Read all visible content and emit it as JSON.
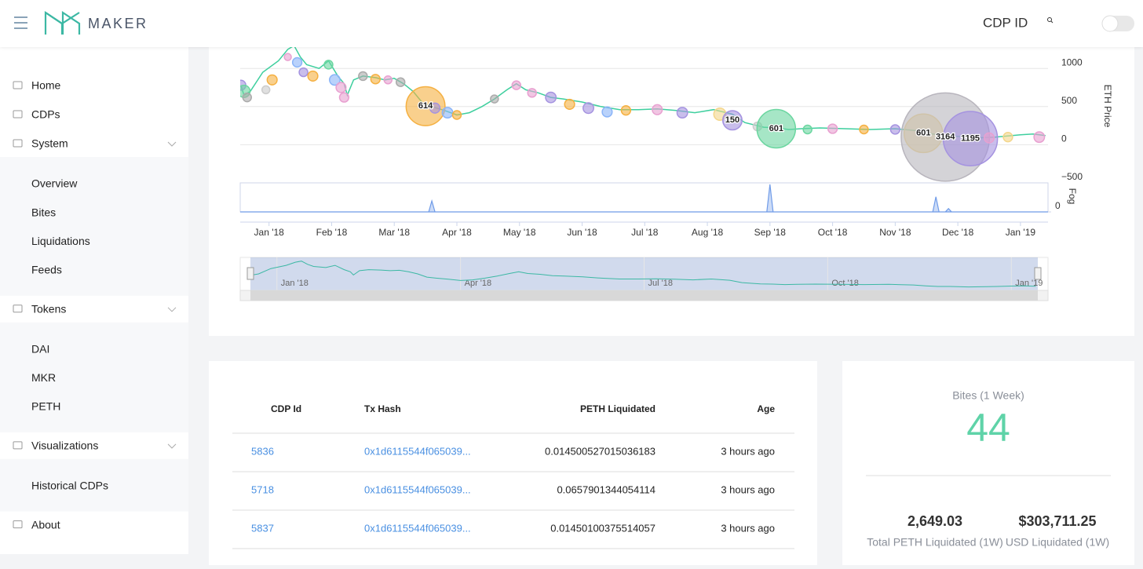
{
  "header": {
    "brand": "MAKER",
    "search_label": "CDP ID"
  },
  "sidebar": [
    {
      "label": "Home"
    },
    {
      "label": "CDPs"
    },
    {
      "label": "System",
      "children": [
        "Overview",
        "Bites",
        "Liquidations",
        "Feeds"
      ]
    },
    {
      "label": "Tokens",
      "children": [
        "DAI",
        "MKR",
        "PETH"
      ]
    },
    {
      "label": "Visualizations",
      "children": [
        "Historical CDPs"
      ]
    },
    {
      "label": "About"
    }
  ],
  "chart_data": {
    "type": "line",
    "y_label": "ETH Price",
    "y2_label": "Fog",
    "xlim": [
      -0.46,
      12.44
    ],
    "xticks": [
      {
        "value": 0,
        "label": "Jan '18"
      },
      {
        "value": 1,
        "label": "Feb '18"
      },
      {
        "value": 2,
        "label": "Mar '18"
      },
      {
        "value": 3,
        "label": "Apr '18"
      },
      {
        "value": 4,
        "label": "May '18"
      },
      {
        "value": 5,
        "label": "Jun '18"
      },
      {
        "value": 6,
        "label": "Jul '18"
      },
      {
        "value": 7,
        "label": "Aug '18"
      },
      {
        "value": 8,
        "label": "Sep '18"
      },
      {
        "value": 9,
        "label": "Oct '18"
      },
      {
        "value": 10,
        "label": "Nov '18"
      },
      {
        "value": 11,
        "label": "Dec '18"
      },
      {
        "value": 12,
        "label": "Jan '19"
      }
    ],
    "ylim": [
      -500,
      1280
    ],
    "yticks": [
      {
        "value": -500,
        "label": "−500"
      },
      0,
      500,
      1000
    ],
    "grid": true,
    "x": [
      -0.45,
      -0.4,
      -0.3,
      -0.1,
      0.15,
      0.3,
      0.4,
      0.5,
      0.6,
      0.8,
      0.95,
      1.1,
      1.2,
      1.25,
      1.35,
      1.5,
      1.7,
      1.85,
      2.0,
      2.15,
      2.3,
      2.45,
      2.6,
      2.8,
      3.0,
      3.2,
      3.4,
      3.6,
      3.8,
      3.95,
      4.1,
      4.3,
      4.5,
      4.7,
      5.0,
      5.3,
      5.6,
      5.9,
      6.2,
      6.5,
      6.8,
      7.1,
      7.4,
      7.6,
      7.9,
      8.1,
      8.3,
      8.5,
      8.8,
      9.2,
      9.6,
      10.0,
      10.4,
      10.6,
      10.8,
      11.0,
      11.3,
      11.6,
      12.0,
      12.2,
      12.4
    ],
    "series": [
      {
        "name": "ETH Price",
        "color": "#3ecf9e",
        "values": [
          780,
          650,
          700,
          950,
          1100,
          1250,
          1300,
          1150,
          1050,
          1000,
          1100,
          900,
          800,
          650,
          850,
          900,
          880,
          850,
          870,
          800,
          700,
          550,
          500,
          450,
          390,
          420,
          500,
          600,
          720,
          800,
          720,
          680,
          620,
          600,
          560,
          500,
          460,
          460,
          470,
          450,
          420,
          460,
          400,
          290,
          230,
          220,
          200,
          210,
          220,
          210,
          200,
          210,
          180,
          140,
          110,
          110,
          90,
          100,
          130,
          140,
          120
        ]
      }
    ],
    "bubbles": [
      {
        "x": -0.45,
        "y": 780,
        "size": 40,
        "color": "#a593e0"
      },
      {
        "x": -0.4,
        "y": 700,
        "size": 60,
        "color": "#6bd6a0"
      },
      {
        "x": -0.35,
        "y": 620,
        "size": 30,
        "color": "#aaaaaa"
      },
      {
        "x": -0.05,
        "y": 720,
        "size": 25,
        "color": "#cccccc"
      },
      {
        "x": 0.05,
        "y": 850,
        "size": 40,
        "color": "#f5b041"
      },
      {
        "x": 0.3,
        "y": 1150,
        "size": 20,
        "color": "#e8a0d0"
      },
      {
        "x": 0.45,
        "y": 1080,
        "size": 35,
        "color": "#8ab4f8"
      },
      {
        "x": 0.55,
        "y": 950,
        "size": 30,
        "color": "#a593e0"
      },
      {
        "x": 0.7,
        "y": 900,
        "size": 40,
        "color": "#f5b041"
      },
      {
        "x": 0.95,
        "y": 1050,
        "size": 30,
        "color": "#6bd6a0"
      },
      {
        "x": 1.05,
        "y": 850,
        "size": 45,
        "color": "#8ab4f8"
      },
      {
        "x": 1.15,
        "y": 750,
        "size": 40,
        "color": "#e8a0d0"
      },
      {
        "x": 1.2,
        "y": 620,
        "size": 35,
        "color": "#e8a0d0"
      },
      {
        "x": 1.5,
        "y": 900,
        "size": 30,
        "color": "#aaaaaa"
      },
      {
        "x": 1.7,
        "y": 860,
        "size": 35,
        "color": "#f5b041"
      },
      {
        "x": 1.9,
        "y": 850,
        "size": 25,
        "color": "#e8a0d0"
      },
      {
        "x": 2.1,
        "y": 820,
        "size": 30,
        "color": "#aaaaaa"
      },
      {
        "x": 2.5,
        "y": 505,
        "size": 614,
        "color": "#f5b041"
      },
      {
        "x": 2.65,
        "y": 480,
        "size": 40,
        "color": "#a593e0"
      },
      {
        "x": 2.85,
        "y": 420,
        "size": 45,
        "color": "#8ab4f8"
      },
      {
        "x": 3.0,
        "y": 390,
        "size": 30,
        "color": "#f5b041"
      },
      {
        "x": 3.6,
        "y": 600,
        "size": 25,
        "color": "#aaaaaa"
      },
      {
        "x": 3.95,
        "y": 780,
        "size": 30,
        "color": "#e8a0d0"
      },
      {
        "x": 4.2,
        "y": 680,
        "size": 30,
        "color": "#e8a0d0"
      },
      {
        "x": 4.5,
        "y": 620,
        "size": 45,
        "color": "#a593e0"
      },
      {
        "x": 4.8,
        "y": 530,
        "size": 40,
        "color": "#f5b041"
      },
      {
        "x": 5.1,
        "y": 480,
        "size": 45,
        "color": "#a593e0"
      },
      {
        "x": 5.4,
        "y": 430,
        "size": 40,
        "color": "#8ab4f8"
      },
      {
        "x": 5.7,
        "y": 450,
        "size": 35,
        "color": "#f5b041"
      },
      {
        "x": 6.2,
        "y": 460,
        "size": 40,
        "color": "#e8a0d0"
      },
      {
        "x": 6.6,
        "y": 420,
        "size": 45,
        "color": "#a593e0"
      },
      {
        "x": 7.2,
        "y": 400,
        "size": 60,
        "color": "#f4d68a"
      },
      {
        "x": 7.4,
        "y": 320,
        "size": 150,
        "color": "#a593e0"
      },
      {
        "x": 7.8,
        "y": 240,
        "size": 30,
        "color": "#cccccc"
      },
      {
        "x": 8.1,
        "y": 210,
        "size": 601,
        "color": "#6bd6a0"
      },
      {
        "x": 8.6,
        "y": 200,
        "size": 30,
        "color": "#6bd6a0"
      },
      {
        "x": 9.0,
        "y": 210,
        "size": 35,
        "color": "#e8a0d0"
      },
      {
        "x": 9.5,
        "y": 200,
        "size": 30,
        "color": "#f5b041"
      },
      {
        "x": 10.0,
        "y": 200,
        "size": 35,
        "color": "#a593e0"
      },
      {
        "x": 10.45,
        "y": 150,
        "size": 601,
        "color": "#f4d68a"
      },
      {
        "x": 10.8,
        "y": 100,
        "size": 3164,
        "color": "#b8b5bd"
      },
      {
        "x": 11.2,
        "y": 80,
        "size": 1195,
        "color": "#a593e0"
      },
      {
        "x": 11.5,
        "y": 90,
        "size": 40,
        "color": "#e8a0d0"
      },
      {
        "x": 11.8,
        "y": 100,
        "size": 35,
        "color": "#f4d68a"
      },
      {
        "x": 12.3,
        "y": 100,
        "size": 45,
        "color": "#e8a0d0"
      }
    ],
    "fog": {
      "color": "#6f9be8",
      "ylim": [
        0,
        100
      ],
      "yticks": [
        0
      ],
      "x": [
        -0.46,
        2.55,
        2.6,
        2.65,
        7.95,
        8.0,
        8.05,
        10.6,
        10.65,
        10.7,
        10.8,
        10.85,
        10.9,
        12.44
      ],
      "values": [
        0,
        0,
        40,
        0,
        0,
        100,
        0,
        0,
        55,
        0,
        0,
        12,
        0,
        0
      ]
    },
    "navigator": {
      "xlim": [
        -0.6,
        12.6
      ],
      "ylim": [
        0,
        1400
      ],
      "xticks": [
        {
          "value": 0,
          "label": "Jan '18"
        },
        {
          "value": 3,
          "label": "Apr '18"
        },
        {
          "value": 6,
          "label": "Jul '18"
        },
        {
          "value": 9,
          "label": "Oct '18"
        },
        {
          "value": 12,
          "label": "Jan '19"
        }
      ]
    }
  },
  "table": {
    "columns": [
      "CDP Id",
      "Tx Hash",
      "PETH Liquidated",
      "Age"
    ],
    "rows": [
      [
        "5836",
        "0x1d6115544f065039...",
        "0.014500527015036183",
        "3 hours ago"
      ],
      [
        "5718",
        "0x1d6115544f065039...",
        "0.0657901344054114",
        "3 hours ago"
      ],
      [
        "5837",
        "0x1d6115544f065039...",
        "0.01450100375514057",
        "3 hours ago"
      ]
    ]
  },
  "stats": {
    "bites_label": "Bites (1 Week)",
    "bites_value": "44",
    "items": [
      {
        "value": "2,649.03",
        "label": "Total PETH Liquidated (1W)"
      },
      {
        "value": "$303,711.25",
        "label": "USD Liquidated (1W)"
      }
    ]
  }
}
